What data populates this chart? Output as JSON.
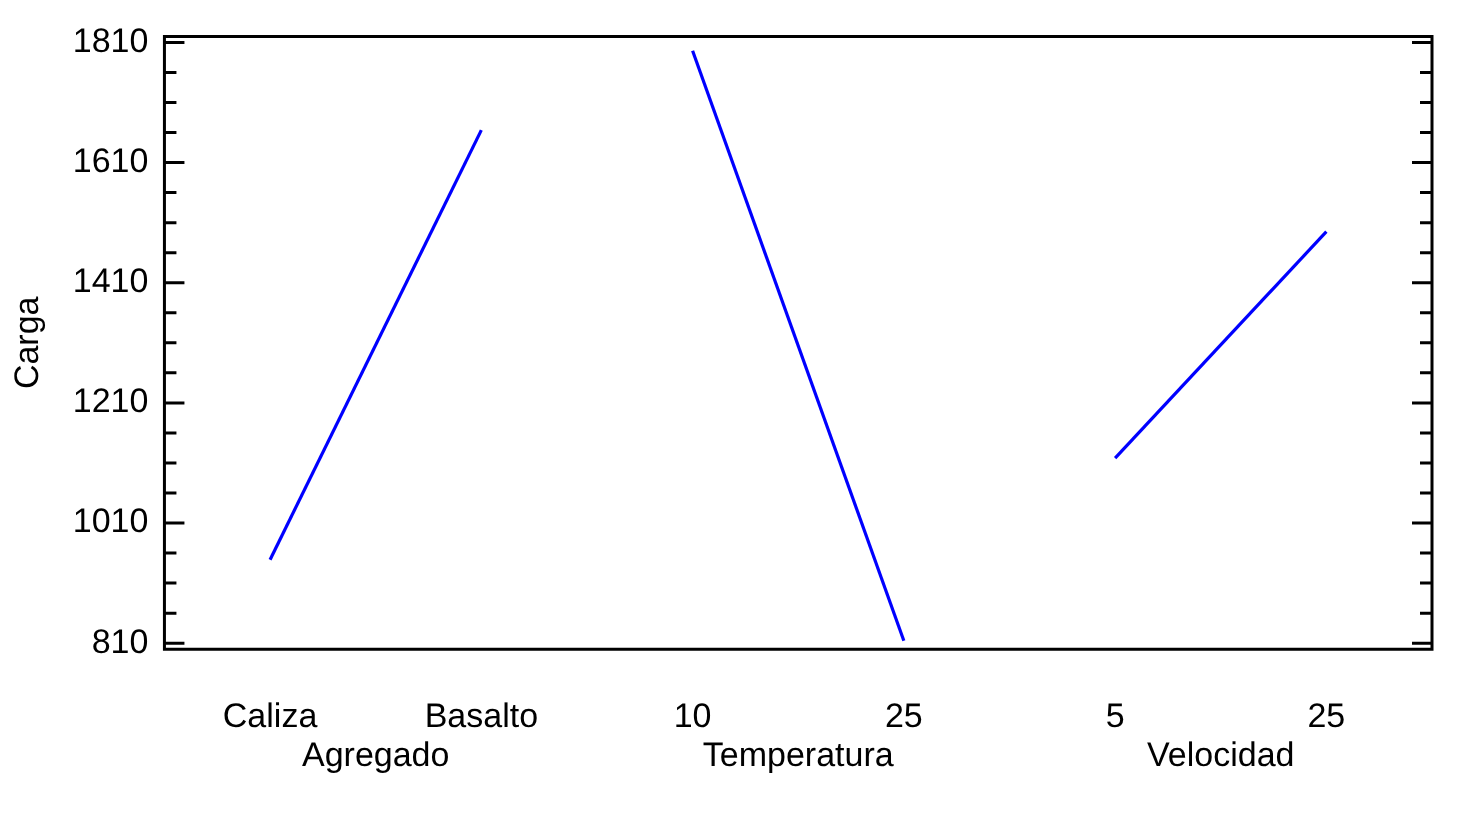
{
  "chart_data": {
    "type": "line",
    "ylabel": "Carga",
    "categories": [
      "Caliza",
      "Basalto",
      "10",
      "25",
      "5",
      "25"
    ],
    "series": [
      {
        "color": "#0000ff",
        "values": [
          949,
          1664,
          null,
          null,
          null,
          null
        ]
      },
      {
        "color": "#0000ff",
        "values": [
          null,
          null,
          1796,
          814,
          null,
          null
        ]
      },
      {
        "color": "#0000ff",
        "values": [
          null,
          null,
          null,
          null,
          1118,
          1495
        ]
      }
    ],
    "annotations": [
      "Agregado",
      "Temperatura",
      "Velocidad"
    ],
    "ylim": [
      800,
      1820
    ],
    "yticks": [
      810,
      {
        "value": 860,
        "label": null
      },
      {
        "value": 910,
        "label": null
      },
      {
        "value": 960,
        "label": null
      },
      1010,
      {
        "value": 1060,
        "label": null
      },
      {
        "value": 1110,
        "label": null
      },
      {
        "value": 1160,
        "label": null
      },
      1210,
      {
        "value": 1260,
        "label": null
      },
      {
        "value": 1310,
        "label": null
      },
      {
        "value": 1360,
        "label": null
      },
      1410,
      {
        "value": 1460,
        "label": null
      },
      {
        "value": 1510,
        "label": null
      },
      {
        "value": 1560,
        "label": null
      },
      1610,
      {
        "value": 1660,
        "label": null
      },
      {
        "value": 1710,
        "label": null
      },
      {
        "value": 1760,
        "label": null
      },
      1810
    ],
    "grid": false,
    "legend": false,
    "marker": "none",
    "line_style": "solid"
  }
}
